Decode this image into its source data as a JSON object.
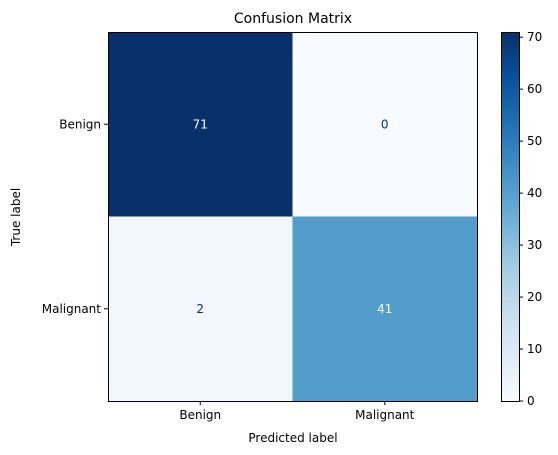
{
  "chart_data": {
    "type": "heatmap",
    "title": "Confusion Matrix",
    "xlabel": "Predicted label",
    "ylabel": "True label",
    "x_categories": [
      "Benign",
      "Malignant"
    ],
    "y_categories": [
      "Benign",
      "Malignant"
    ],
    "values": [
      [
        71,
        0
      ],
      [
        2,
        41
      ]
    ],
    "colormap": "Blues",
    "color_range": [
      0,
      71
    ],
    "colorbar_ticks": [
      0,
      10,
      20,
      30,
      40,
      50,
      60,
      70
    ],
    "grid": false
  }
}
